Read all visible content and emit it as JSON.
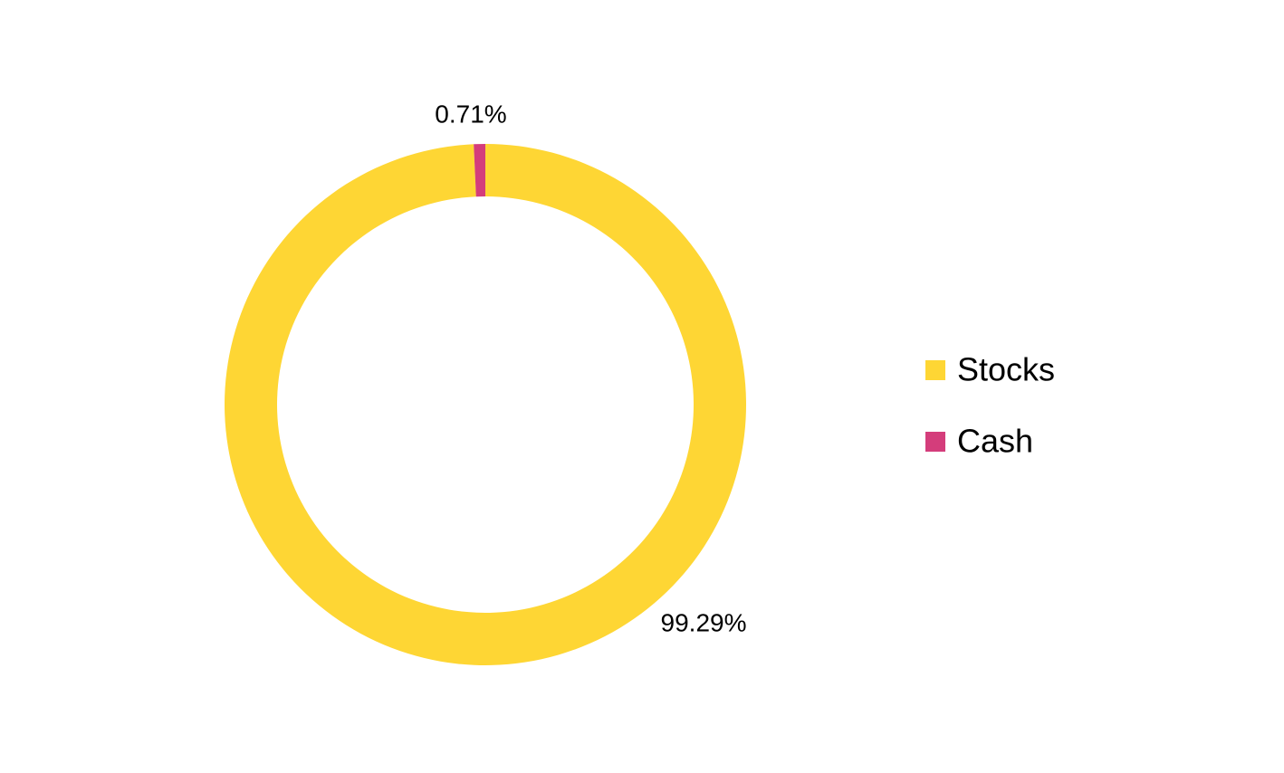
{
  "chart_data": {
    "type": "donut",
    "categories": [
      "Stocks",
      "Cash"
    ],
    "series": [
      {
        "values": [
          99.29,
          0.71
        ],
        "value_labels": [
          "99.29%",
          "0.71%"
        ],
        "colors": [
          "#fed634",
          "#d43d7b"
        ]
      }
    ],
    "legend": "right"
  }
}
